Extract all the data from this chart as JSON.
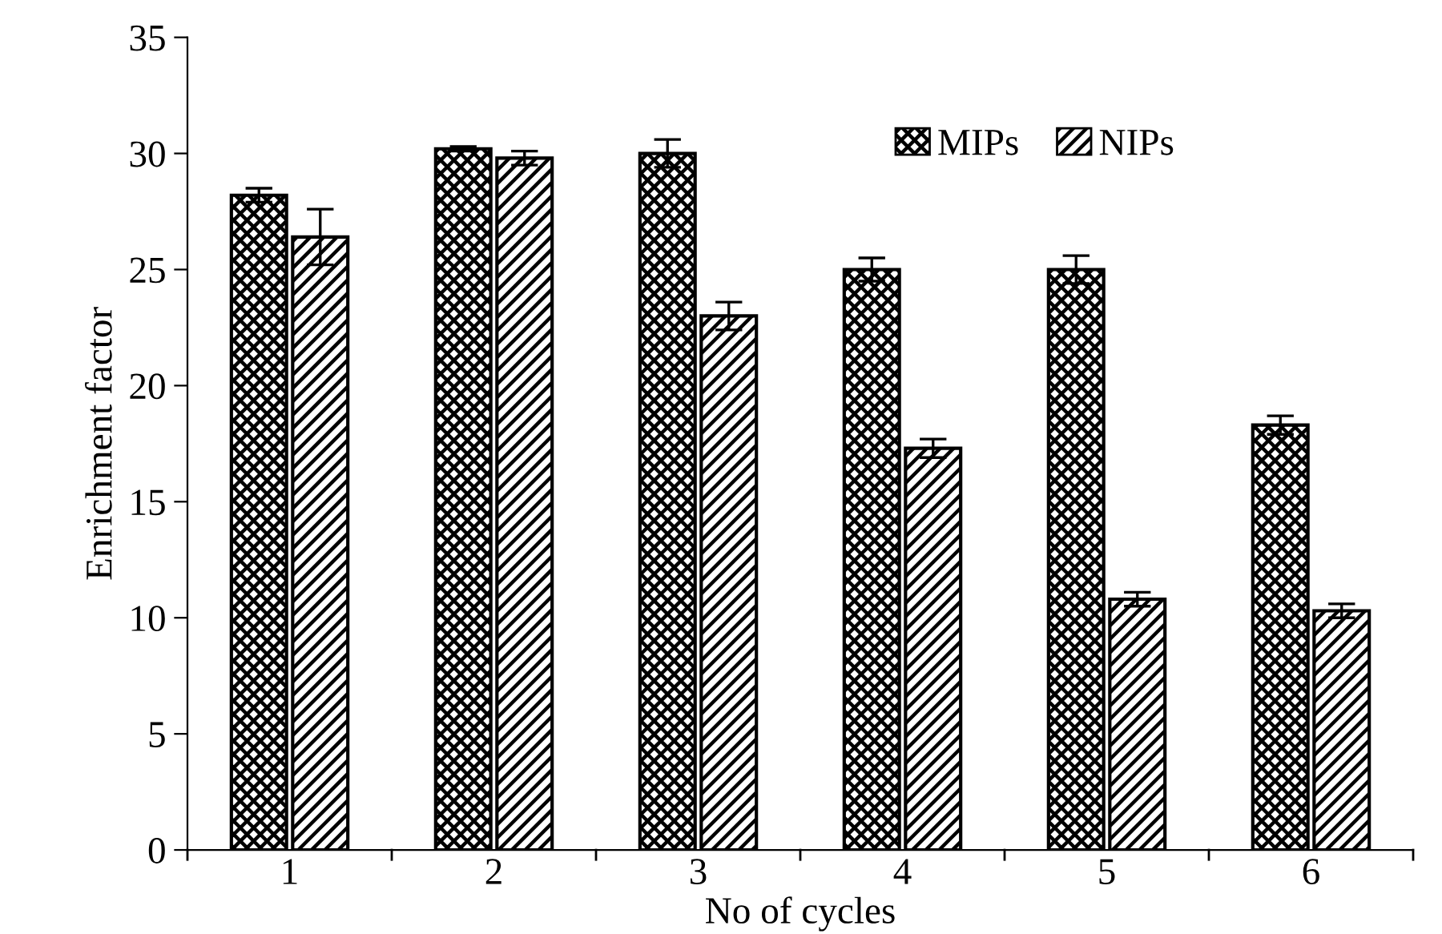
{
  "chart_data": {
    "type": "bar",
    "xlabel": "No of cycles",
    "ylabel": "Enrichment factor",
    "categories": [
      "1",
      "2",
      "3",
      "4",
      "5",
      "6"
    ],
    "series": [
      {
        "name": "MIPs",
        "color": "#000000",
        "values": [
          28.2,
          30.2,
          30.0,
          25.0,
          25.0,
          18.3
        ],
        "errors": [
          0.3,
          0.1,
          0.6,
          0.5,
          0.6,
          0.4
        ]
      },
      {
        "name": "NIPs",
        "color": "#000000",
        "values": [
          26.4,
          29.8,
          23.0,
          17.3,
          10.8,
          10.3
        ],
        "errors": [
          1.2,
          0.3,
          0.6,
          0.4,
          0.3,
          0.3
        ]
      }
    ],
    "ylim": [
      0,
      35
    ],
    "yticks": [
      0,
      5,
      10,
      15,
      20,
      25,
      30,
      35
    ],
    "grid": false,
    "legend": "top right"
  }
}
